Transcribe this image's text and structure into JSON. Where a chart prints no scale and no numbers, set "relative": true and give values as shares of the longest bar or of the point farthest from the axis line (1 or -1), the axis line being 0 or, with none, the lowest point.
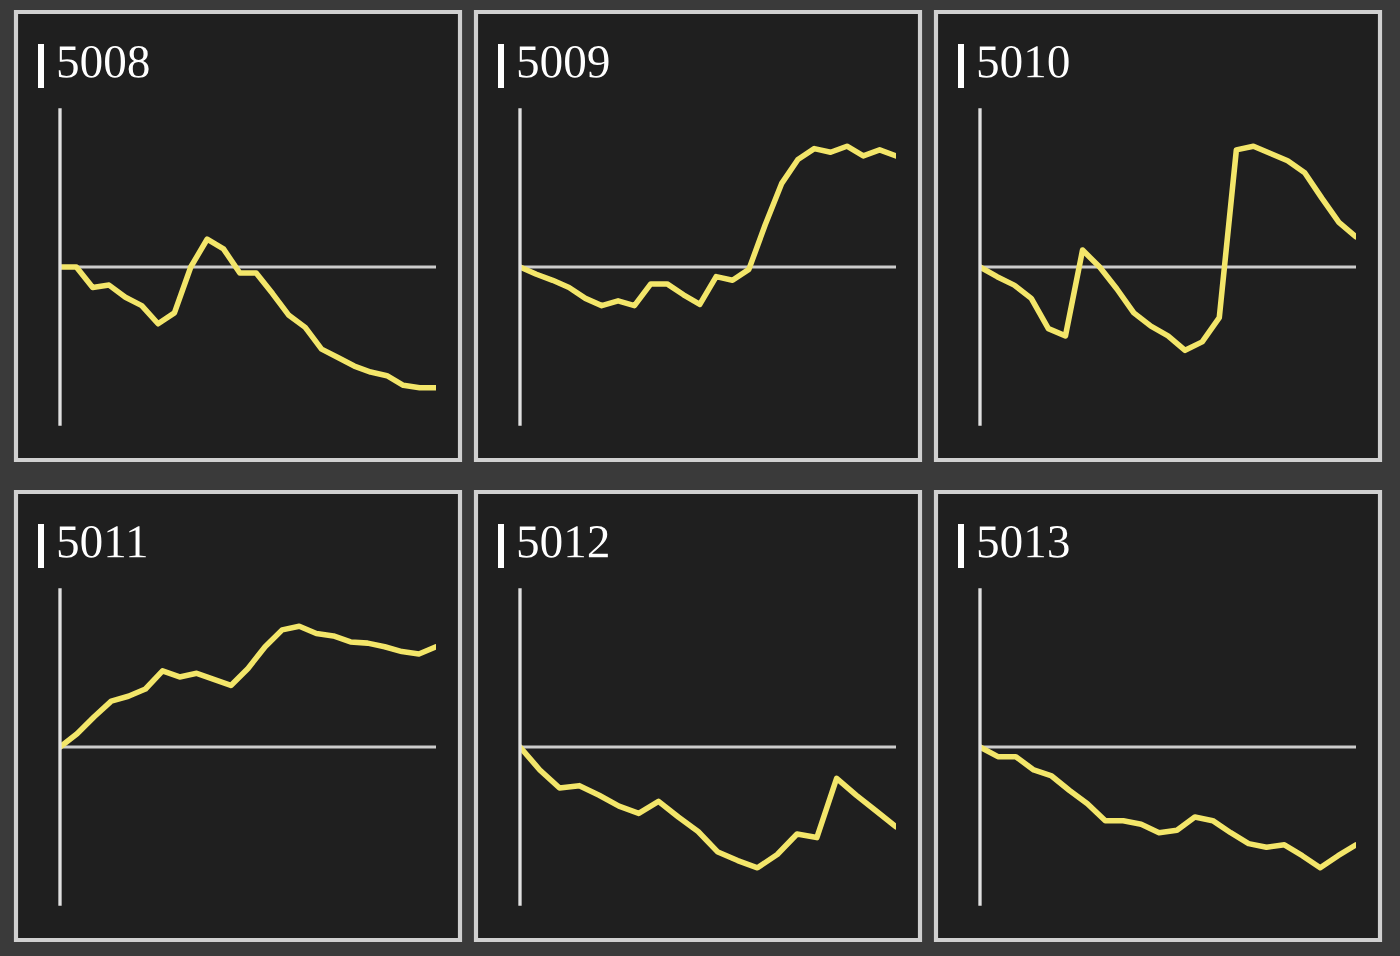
{
  "chart_data": [
    {
      "type": "line",
      "title": "5008",
      "relative": true,
      "categories": [
        null,
        null,
        null,
        null,
        null,
        null,
        null,
        null,
        null,
        null,
        null,
        null,
        null,
        null,
        null,
        null,
        null,
        null,
        null,
        null,
        null,
        null,
        null,
        null
      ],
      "series": [
        {
          "color": "#f3e66a",
          "values": [
            0,
            0,
            -0.17,
            -0.15,
            -0.25,
            -0.32,
            -0.47,
            -0.38,
            0,
            0.23,
            0.15,
            -0.05,
            -0.05,
            -0.22,
            -0.4,
            -0.5,
            -0.68,
            -0.75,
            -0.82,
            -0.87,
            -0.9,
            -0.98,
            -1,
            -1
          ]
        }
      ]
    },
    {
      "type": "line",
      "title": "5009",
      "relative": true,
      "categories": [
        null,
        null,
        null,
        null,
        null,
        null,
        null,
        null,
        null,
        null,
        null,
        null,
        null,
        null,
        null,
        null,
        null,
        null,
        null,
        null,
        null,
        null,
        null,
        null
      ],
      "series": [
        {
          "color": "#f3e66a",
          "values": [
            0,
            -0.06,
            -0.11,
            -0.17,
            -0.26,
            -0.32,
            -0.28,
            -0.32,
            -0.14,
            -0.14,
            -0.23,
            -0.31,
            -0.08,
            -0.11,
            -0.02,
            0.35,
            0.69,
            0.89,
            0.98,
            0.95,
            1,
            0.92,
            0.97,
            0.92
          ]
        }
      ]
    },
    {
      "type": "line",
      "title": "5010",
      "relative": true,
      "categories": [
        null,
        null,
        null,
        null,
        null,
        null,
        null,
        null,
        null,
        null,
        null,
        null,
        null,
        null,
        null,
        null,
        null,
        null,
        null,
        null,
        null,
        null,
        null
      ],
      "series": [
        {
          "color": "#f3e66a",
          "values": [
            0,
            -0.08,
            -0.15,
            -0.26,
            -0.51,
            -0.57,
            0.14,
            0,
            -0.18,
            -0.38,
            -0.49,
            -0.57,
            -0.69,
            -0.62,
            -0.42,
            0.97,
            1,
            0.94,
            0.88,
            0.78,
            0.57,
            0.37,
            0.25
          ]
        }
      ]
    },
    {
      "type": "line",
      "title": "5011",
      "relative": true,
      "categories": [
        null,
        null,
        null,
        null,
        null,
        null,
        null,
        null,
        null,
        null,
        null,
        null,
        null,
        null,
        null,
        null,
        null,
        null,
        null,
        null,
        null,
        null,
        null
      ],
      "series": [
        {
          "color": "#f3e66a",
          "values": [
            0,
            0.11,
            0.25,
            0.38,
            0.42,
            0.48,
            0.63,
            0.58,
            0.61,
            0.56,
            0.51,
            0.65,
            0.83,
            0.97,
            1,
            0.94,
            0.92,
            0.87,
            0.86,
            0.83,
            0.79,
            0.77,
            0.83
          ]
        }
      ]
    },
    {
      "type": "line",
      "title": "5012",
      "relative": true,
      "categories": [
        null,
        null,
        null,
        null,
        null,
        null,
        null,
        null,
        null,
        null,
        null,
        null,
        null,
        null,
        null,
        null,
        null,
        null,
        null,
        null
      ],
      "series": [
        {
          "color": "#f3e66a",
          "values": [
            0,
            -0.19,
            -0.34,
            -0.32,
            -0.4,
            -0.49,
            -0.55,
            -0.45,
            -0.58,
            -0.7,
            -0.87,
            -0.94,
            -1,
            -0.89,
            -0.72,
            -0.75,
            -0.26,
            -0.4,
            -0.53,
            -0.66
          ]
        }
      ]
    },
    {
      "type": "line",
      "title": "5013",
      "relative": true,
      "categories": [
        null,
        null,
        null,
        null,
        null,
        null,
        null,
        null,
        null,
        null,
        null,
        null,
        null,
        null,
        null,
        null,
        null,
        null,
        null,
        null,
        null,
        null
      ],
      "series": [
        {
          "color": "#f3e66a",
          "values": [
            0,
            -0.08,
            -0.08,
            -0.19,
            -0.24,
            -0.36,
            -0.47,
            -0.61,
            -0.61,
            -0.64,
            -0.71,
            -0.69,
            -0.58,
            -0.61,
            -0.71,
            -0.8,
            -0.83,
            -0.81,
            -0.9,
            -1,
            -0.9,
            -0.81
          ]
        }
      ]
    }
  ]
}
